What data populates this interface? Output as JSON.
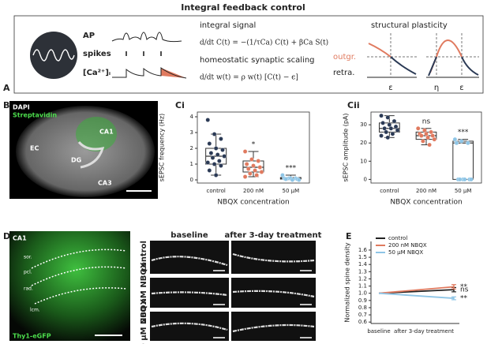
{
  "panel_a": {
    "label": "A",
    "title": "Integral feedback control",
    "neuron_labels": [
      "AP",
      "spikes",
      "[Ca²⁺]ᵢ"
    ],
    "integral_title": "integral signal",
    "integral_eq": "d/dt C(t) = −(1/τCa) C(t) + βCa S(t)",
    "scaling_title": "homeostatic synaptic scaling",
    "scaling_eq": "d/dt w(t) = ρ w(t) [C(t) − ϵ]",
    "plasticity_title": "structural plasticity",
    "outgrowth": "outgr.",
    "retraction": "retra.",
    "symbols": [
      "ε",
      "η",
      "ε"
    ]
  },
  "panel_b": {
    "label": "B",
    "texts": [
      "DAPI",
      "Streptavidin",
      "CA1",
      "EC",
      "DG",
      "CA3"
    ]
  },
  "panel_d": {
    "label": "D",
    "texts": [
      "CA1",
      "sor.",
      "pcl.",
      "rad.",
      "lcm.",
      "Thy1-eGFP"
    ],
    "columns": [
      "baseline",
      "after 3-day treatment"
    ],
    "rows": [
      "control",
      "200 nM NBQX",
      "50 µM NBQX"
    ]
  },
  "chart_data": [
    {
      "type": "box",
      "panel": "Ci",
      "y_label": "sEPSC frequency (Hz)",
      "x_label": "NBQX concentration",
      "categories": [
        "control",
        "200 nM",
        "50 µM"
      ],
      "ylim": [
        -0.2,
        4.3
      ],
      "yticks": [
        0,
        1,
        2,
        3,
        4
      ],
      "boxes": [
        {
          "color": "#2b3a55",
          "whislo": 0.3,
          "q1": 1.0,
          "median": 1.5,
          "q3": 2.0,
          "whishi": 2.9,
          "points": [
            3.8,
            2.9,
            2.6,
            2.3,
            2.0,
            1.9,
            1.7,
            1.6,
            1.5,
            1.4,
            1.2,
            1.1,
            1.0,
            0.9,
            0.6,
            0.3
          ]
        },
        {
          "color": "#e07a5f",
          "whislo": 0.2,
          "q1": 0.5,
          "median": 0.8,
          "q3": 1.2,
          "whishi": 1.8,
          "points": [
            1.8,
            1.3,
            1.2,
            1.0,
            0.9,
            0.8,
            0.7,
            0.6,
            0.5,
            0.4,
            0.3,
            0.2
          ]
        },
        {
          "color": "#8ec5e6",
          "whislo": 0,
          "q1": 0.05,
          "median": 0.1,
          "q3": 0.15,
          "whishi": 0.3,
          "points": [
            0.3,
            0.1,
            0.1,
            0.1,
            0.1,
            0.05,
            0.05,
            0,
            0
          ]
        }
      ],
      "annotations": [
        {
          "text": "*",
          "category": 1
        },
        {
          "text": "***",
          "category": 2
        }
      ]
    },
    {
      "type": "box",
      "panel": "Cii",
      "y_label": "sEPSC amplitude (pA)",
      "x_label": "NBQX concentration",
      "categories": [
        "control",
        "200 nM",
        "50 µM"
      ],
      "ylim": [
        -2,
        37
      ],
      "yticks": [
        0,
        10,
        20,
        30
      ],
      "boxes": [
        {
          "color": "#2b3a55",
          "whislo": 23,
          "q1": 26,
          "median": 28,
          "q3": 31,
          "whishi": 35,
          "points": [
            35,
            34,
            32,
            31,
            30,
            29,
            28,
            28,
            27,
            26,
            25,
            24,
            23
          ]
        },
        {
          "color": "#e07a5f",
          "whislo": 19,
          "q1": 22,
          "median": 24,
          "q3": 26,
          "whishi": 28,
          "points": [
            28,
            27,
            26,
            25,
            25,
            24,
            24,
            23,
            22,
            21,
            19
          ]
        },
        {
          "color": "#8ec5e6",
          "whislo": 0,
          "q1": 0,
          "median": 20,
          "q3": 21,
          "whishi": 22,
          "points": [
            22,
            21,
            20,
            20,
            0,
            0,
            0,
            0,
            0,
            0
          ]
        }
      ],
      "annotations": [
        {
          "text": "ns",
          "category": 1
        },
        {
          "text": "***",
          "category": 2
        }
      ]
    },
    {
      "type": "line",
      "panel": "E",
      "y_label": "Normalized spine density",
      "categories": [
        "baseline",
        "after 3-day treatment"
      ],
      "ylim": [
        0.58,
        1.72
      ],
      "yticks": [
        0.6,
        0.7,
        0.8,
        0.9,
        {
          "value": 1,
          "label": "1.0"
        },
        1.1,
        1.2,
        1.3,
        1.4,
        1.5,
        1.6
      ],
      "legend": "top-left",
      "series": [
        {
          "name": "control",
          "color": "#222222",
          "values": [
            1.0,
            1.05
          ],
          "errors": [
            0,
            0.03
          ]
        },
        {
          "name": "200 nM NBQX",
          "color": "#e07a5f",
          "values": [
            1.0,
            1.09
          ],
          "errors": [
            0,
            0.03
          ]
        },
        {
          "name": "50 µM NBQX",
          "color": "#8ec5e6",
          "values": [
            1.0,
            0.93
          ],
          "errors": [
            0,
            0.02
          ]
        }
      ],
      "annotations": [
        {
          "text": "**",
          "series": 1
        },
        {
          "text": "ns",
          "series": 0
        },
        {
          "text": "**",
          "series": 2
        }
      ]
    }
  ]
}
